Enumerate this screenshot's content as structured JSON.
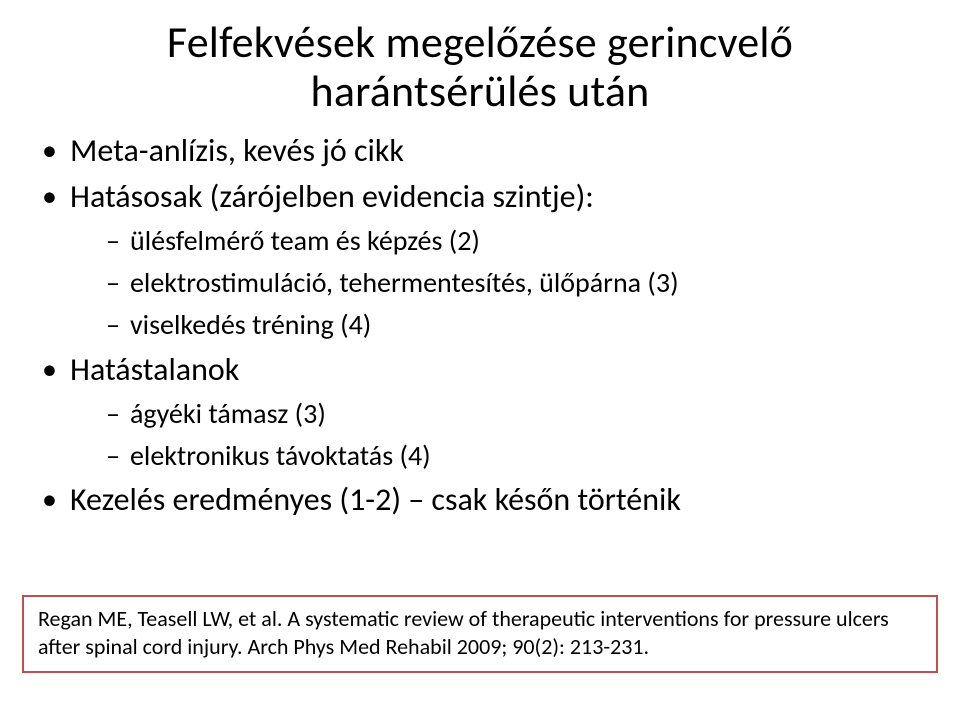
{
  "colors": {
    "background": "#ffffff",
    "text": "#000000",
    "citation_border": "#c0504d"
  },
  "typography": {
    "title_fontsize": 44,
    "level1_fontsize": 32,
    "level2_fontsize": 28,
    "citation_fontsize": 22,
    "font_family": "Calibri"
  },
  "title": {
    "line1": "Felfekvések megelőzése gerincvelő",
    "line2": "harántsérülés után"
  },
  "bullets": {
    "b1": "Meta-anlízis, kevés jó cikk",
    "b2": "Hatásosak (zárójelben evidencia szintje):",
    "b2_sub": {
      "s1": "ülésfelmérő team és képzés (2)",
      "s2": "elektrostimuláció, tehermentesítés, ülőpárna (3)",
      "s3": "viselkedés tréning (4)"
    },
    "b3": "Hatástalanok",
    "b3_sub": {
      "s1": "ágyéki támasz (3)",
      "s2": "elektronikus távoktatás (4)"
    },
    "b4": "Kezelés eredményes (1-2) – csak későn történik"
  },
  "citation": "Regan ME, Teasell LW, et al. A systematic review of therapeutic interventions for pressure ulcers after spinal cord injury. Arch Phys Med Rehabil 2009; 90(2): 213-231."
}
